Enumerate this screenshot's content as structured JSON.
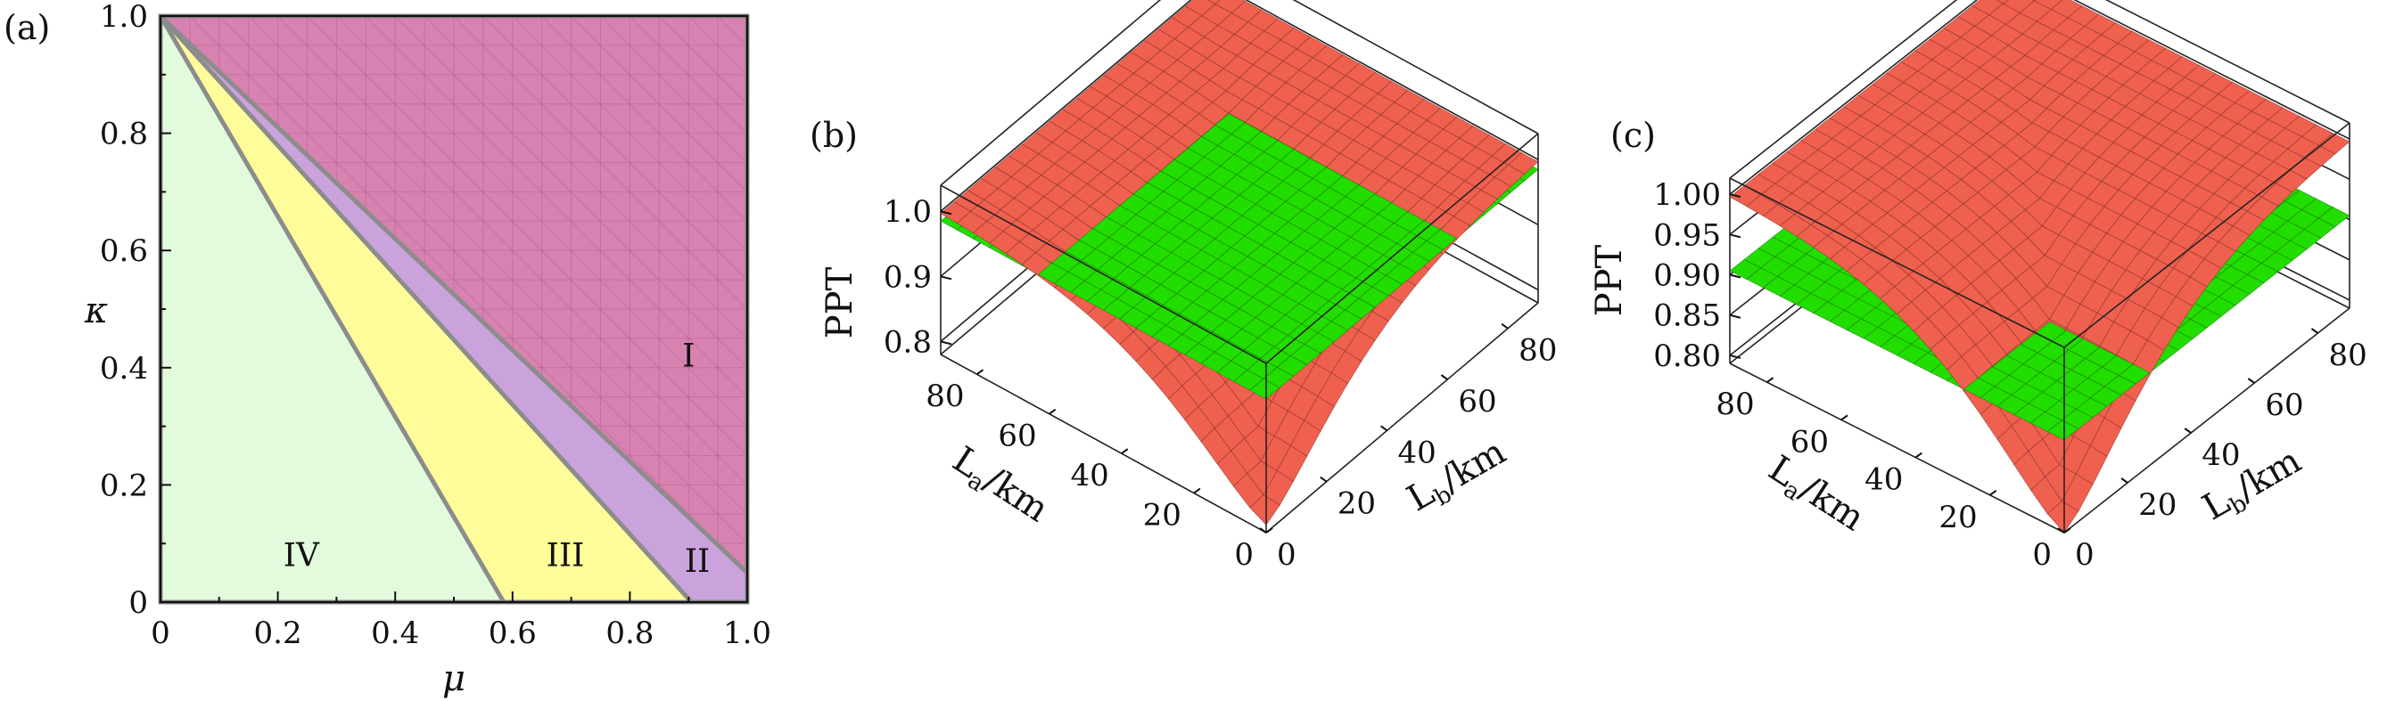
{
  "chart_data": [
    {
      "panel": "(a)",
      "type": "area",
      "xlabel": "μ",
      "ylabel": "κ",
      "xlim": [
        0,
        1
      ],
      "ylim": [
        0,
        1
      ],
      "xticks": [
        "0",
        "0.2",
        "0.4",
        "0.6",
        "0.8",
        "1.0"
      ],
      "yticks": [
        "0",
        "0.2",
        "0.4",
        "0.6",
        "0.8",
        "1.0"
      ],
      "regions": [
        {
          "name": "I",
          "color": "#d782b0",
          "vertices": [
            [
              0,
              1
            ],
            [
              1,
              1
            ],
            [
              1,
              0.05
            ]
          ]
        },
        {
          "name": "II",
          "color": "#caa3dc",
          "vertices": [
            [
              0,
              1
            ],
            [
              1,
              0.05
            ],
            [
              1,
              0
            ],
            [
              0.905,
              0
            ]
          ]
        },
        {
          "name": "III",
          "color": "#fffc9a",
          "vertices": [
            [
              0,
              1
            ],
            [
              0.905,
              0
            ],
            [
              0.585,
              0
            ]
          ]
        },
        {
          "name": "IV",
          "color": "#e2fbdc",
          "vertices": [
            [
              0,
              1
            ],
            [
              0.585,
              0
            ],
            [
              0,
              0
            ]
          ]
        }
      ],
      "boundaries": [
        {
          "from": [
            0,
            1
          ],
          "to": [
            0.585,
            0
          ]
        },
        {
          "from": [
            0,
            1
          ],
          "to": [
            0.905,
            0
          ]
        },
        {
          "from": [
            0,
            1
          ],
          "to": [
            1,
            0.05
          ]
        }
      ],
      "region_labels": [
        {
          "text": "I",
          "x": 0.9,
          "y": 0.42
        },
        {
          "text": "II",
          "x": 0.915,
          "y": 0.07
        },
        {
          "text": "III",
          "x": 0.69,
          "y": 0.08
        },
        {
          "text": "IV",
          "x": 0.24,
          "y": 0.08
        }
      ],
      "border_color": "#8c8c8c"
    },
    {
      "panel": "(b)",
      "type": "surface",
      "zlabel": "PPT",
      "xlabel": "La/km",
      "ylabel": "Lb/km",
      "xlim": [
        0,
        90
      ],
      "ylim": [
        0,
        90
      ],
      "zlim": [
        0.78,
        1.04
      ],
      "zticks": [
        0.8,
        0.9,
        1.0
      ],
      "ztick_labels": [
        "0.8",
        "0.9",
        "1.0"
      ],
      "xticks": [
        0,
        20,
        40,
        60,
        80
      ],
      "yticks": [
        0,
        20,
        40,
        60,
        80
      ],
      "surfaces": [
        {
          "name": "red",
          "color": "#f0604f",
          "z_at_origin": 0.792,
          "z_far": 1.0
        },
        {
          "name": "green",
          "color": "#22dd00",
          "z_constant": 0.985
        }
      ]
    },
    {
      "panel": "(c)",
      "type": "surface",
      "zlabel": "PPT",
      "xlabel": "La/km",
      "ylabel": "Lb/km",
      "xlim": [
        0,
        90
      ],
      "ylim": [
        0,
        90
      ],
      "zlim": [
        0.79,
        1.02
      ],
      "zticks": [
        0.8,
        0.85,
        0.9,
        0.95,
        1.0
      ],
      "ztick_labels": [
        "0.80",
        "0.85",
        "0.90",
        "0.95",
        "1.00"
      ],
      "xticks": [
        0,
        20,
        40,
        60,
        80
      ],
      "yticks": [
        0,
        20,
        40,
        60,
        80
      ],
      "surfaces": [
        {
          "name": "red",
          "color": "#f0604f",
          "z_at_origin": 0.79,
          "z_far": 1.0
        },
        {
          "name": "green",
          "color": "#22dd00",
          "z_constant": 0.905
        }
      ]
    }
  ],
  "labels": {
    "panel_a": "(a)",
    "panel_b": "(b)",
    "panel_c": "(c)",
    "mu": "μ",
    "kappa": "κ",
    "ppt": "PPT",
    "la_main": "L",
    "la_sub": "a",
    "lb_main": "L",
    "lb_sub": "b",
    "unit": "/km"
  }
}
